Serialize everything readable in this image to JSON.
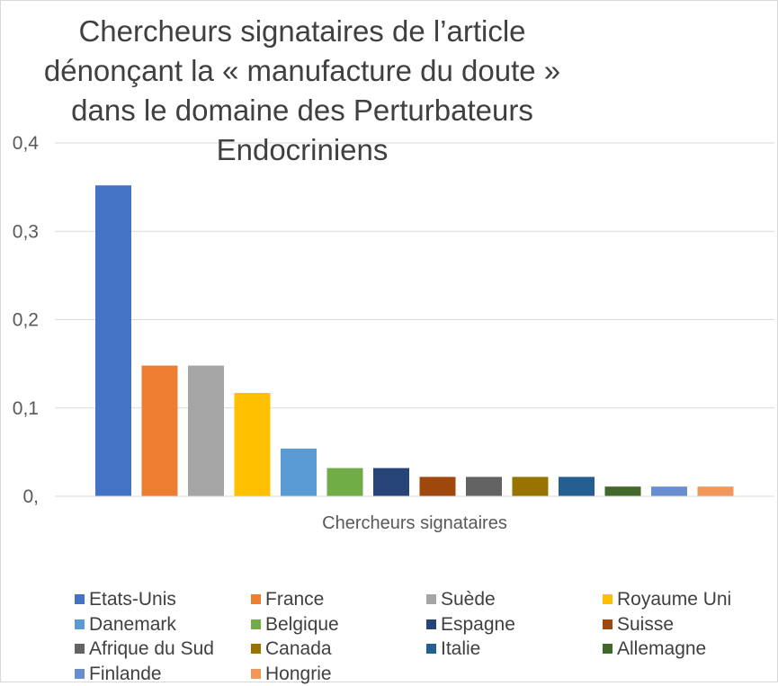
{
  "chart_data": {
    "type": "bar",
    "title_lines": [
      "Chercheurs signataires de l’article",
      "dénonçant la « manufacture du doute »",
      "dans le domaine des Perturbateurs",
      "Endocriniens"
    ],
    "xlabel": "Chercheurs signataires",
    "ylabel": "",
    "ylim": [
      0,
      0.4
    ],
    "yticks": [
      {
        "value": 0,
        "label": "0,"
      },
      {
        "value": 0.1,
        "label": "0,1"
      },
      {
        "value": 0.2,
        "label": "0,2"
      },
      {
        "value": 0.3,
        "label": "0,3"
      },
      {
        "value": 0.4,
        "label": "0,4"
      }
    ],
    "grid": true,
    "legend_position": "bottom",
    "series": [
      {
        "name": "Etats-Unis",
        "value": 0.352,
        "color": "#4472C4"
      },
      {
        "name": "France",
        "value": 0.148,
        "color": "#ED7D31"
      },
      {
        "name": "Suède",
        "value": 0.148,
        "color": "#A5A5A5"
      },
      {
        "name": "Royaume Uni",
        "value": 0.117,
        "color": "#FFC000"
      },
      {
        "name": "Danemark",
        "value": 0.054,
        "color": "#5B9BD5"
      },
      {
        "name": "Belgique",
        "value": 0.032,
        "color": "#70AD47"
      },
      {
        "name": "Espagne",
        "value": 0.032,
        "color": "#264478"
      },
      {
        "name": "Suisse",
        "value": 0.022,
        "color": "#9E480E"
      },
      {
        "name": "Afrique du Sud",
        "value": 0.022,
        "color": "#636363"
      },
      {
        "name": "Canada",
        "value": 0.022,
        "color": "#997300"
      },
      {
        "name": "Italie",
        "value": 0.022,
        "color": "#255E91"
      },
      {
        "name": "Allemagne",
        "value": 0.011,
        "color": "#43682B"
      },
      {
        "name": "Finlande",
        "value": 0.011,
        "color": "#698ED0"
      },
      {
        "name": "Hongrie",
        "value": 0.011,
        "color": "#F1975A"
      }
    ]
  }
}
